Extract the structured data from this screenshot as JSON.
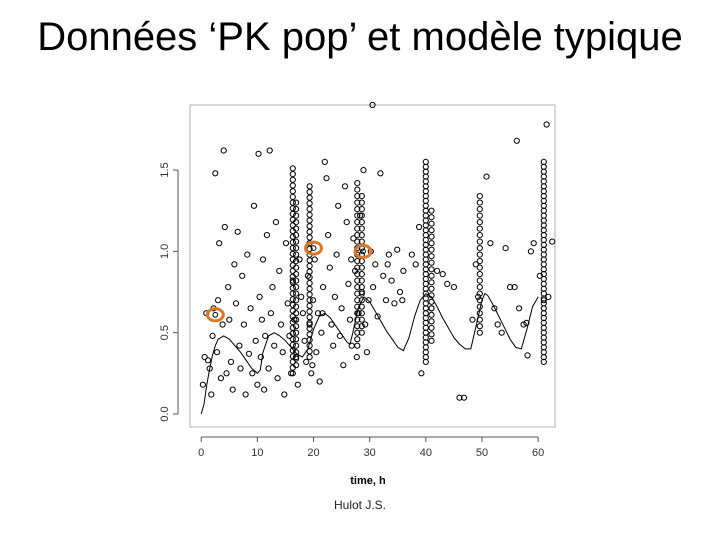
{
  "slide": {
    "title": "Données ‘PK pop’ et modèle typique",
    "footer": "Hulot J.S."
  },
  "colors": {
    "point_stroke": "#000000",
    "curve": "#000000",
    "highlight": "#d9782a",
    "background": "#ffffff"
  },
  "chart_data": {
    "type": "scatter",
    "title": "",
    "xlabel": "time, h",
    "ylabel": "",
    "xlim": [
      -2,
      63
    ],
    "ylim": [
      -0.08,
      1.9
    ],
    "grid": false,
    "legend": "none",
    "x_ticks": [
      {
        "value": 0,
        "label": "0"
      },
      {
        "value": 10,
        "label": "10"
      },
      {
        "value": 20,
        "label": "20"
      },
      {
        "value": 30,
        "label": "30"
      },
      {
        "value": 40,
        "label": "40"
      },
      {
        "value": 50,
        "label": "50"
      },
      {
        "value": 60,
        "label": "60"
      }
    ],
    "y_ticks": [
      {
        "value": 0.0,
        "label": "0.0"
      },
      {
        "value": 0.5,
        "label": "0.5"
      },
      {
        "value": 1.0,
        "label": "1.0"
      },
      {
        "value": 1.5,
        "label": "1.5"
      }
    ],
    "series": [
      {
        "type": "scatter",
        "points": [
          [
            0.3,
            0.18
          ],
          [
            0.6,
            0.35
          ],
          [
            0.9,
            0.62
          ],
          [
            1.2,
            0.33
          ],
          [
            1.5,
            0.28
          ],
          [
            1.8,
            0.12
          ],
          [
            2.0,
            0.48
          ],
          [
            2.2,
            0.65
          ],
          [
            2.5,
            1.48
          ],
          [
            2.8,
            0.38
          ],
          [
            3.0,
            0.7
          ],
          [
            3.2,
            1.05
          ],
          [
            3.5,
            0.22
          ],
          [
            3.8,
            0.55
          ],
          [
            4.0,
            1.62
          ],
          [
            4.2,
            1.15
          ],
          [
            4.5,
            0.25
          ],
          [
            4.8,
            0.78
          ],
          [
            5.0,
            0.58
          ],
          [
            5.3,
            0.32
          ],
          [
            5.6,
            0.15
          ],
          [
            5.9,
            0.92
          ],
          [
            6.2,
            0.68
          ],
          [
            6.5,
            1.12
          ],
          [
            6.8,
            0.42
          ],
          [
            7.0,
            0.28
          ],
          [
            7.3,
            0.85
          ],
          [
            7.6,
            0.55
          ],
          [
            7.9,
            0.12
          ],
          [
            8.2,
            0.98
          ],
          [
            8.5,
            0.37
          ],
          [
            8.8,
            0.65
          ],
          [
            9.1,
            0.25
          ],
          [
            9.4,
            1.28
          ],
          [
            9.7,
            0.45
          ],
          [
            10.0,
            0.18
          ],
          [
            10.2,
            1.6
          ],
          [
            10.4,
            0.72
          ],
          [
            10.6,
            0.35
          ],
          [
            10.8,
            0.58
          ],
          [
            11.0,
            0.95
          ],
          [
            11.2,
            0.15
          ],
          [
            11.4,
            0.48
          ],
          [
            11.7,
            1.1
          ],
          [
            12.0,
            0.28
          ],
          [
            12.2,
            1.62
          ],
          [
            12.4,
            0.62
          ],
          [
            12.7,
            0.78
          ],
          [
            13.0,
            0.42
          ],
          [
            13.3,
            1.18
          ],
          [
            13.6,
            0.22
          ],
          [
            13.9,
            0.88
          ],
          [
            14.2,
            0.55
          ],
          [
            14.5,
            0.38
          ],
          [
            14.8,
            0.12
          ],
          [
            15.1,
            1.05
          ],
          [
            15.4,
            0.68
          ],
          [
            15.7,
            0.48
          ],
          [
            16.0,
            0.25
          ],
          [
            16.3,
            0.82
          ],
          [
            16.6,
            0.58
          ],
          [
            16.9,
            0.35
          ],
          [
            17.2,
            0.18
          ],
          [
            17.5,
            0.95
          ],
          [
            17.8,
            0.72
          ],
          [
            18.1,
            0.62
          ],
          [
            18.4,
            0.45
          ],
          [
            18.7,
            0.32
          ],
          [
            19.0,
            0.85
          ],
          [
            19.3,
            0.55
          ],
          [
            19.6,
            0.25
          ],
          [
            19.9,
            0.7
          ],
          [
            20.2,
            0.95
          ],
          [
            20.5,
            0.38
          ],
          [
            20.8,
            0.62
          ],
          [
            21.1,
            0.2
          ],
          [
            21.4,
            0.5
          ],
          [
            21.7,
            0.78
          ],
          [
            22.0,
            1.55
          ],
          [
            22.3,
            1.45
          ],
          [
            22.6,
            1.1
          ],
          [
            22.9,
            0.9
          ],
          [
            23.2,
            0.55
          ],
          [
            23.5,
            0.42
          ],
          [
            23.8,
            0.72
          ],
          [
            24.1,
            0.98
          ],
          [
            24.4,
            1.28
          ],
          [
            24.7,
            0.48
          ],
          [
            25.0,
            0.65
          ],
          [
            25.3,
            0.3
          ],
          [
            25.6,
            1.4
          ],
          [
            25.9,
            1.18
          ],
          [
            26.2,
            0.8
          ],
          [
            26.5,
            0.58
          ],
          [
            26.8,
            0.42
          ],
          [
            27.1,
            1.08
          ],
          [
            27.4,
            0.88
          ],
          [
            27.7,
            0.35
          ],
          [
            28.0,
            0.62
          ],
          [
            28.3,
            1.22
          ],
          [
            28.6,
            0.75
          ],
          [
            28.9,
            1.5
          ],
          [
            29.2,
            0.55
          ],
          [
            29.5,
            0.38
          ],
          [
            29.8,
            0.7
          ],
          [
            30.2,
            1.0
          ],
          [
            30.6,
            0.78
          ],
          [
            31.0,
            0.92
          ],
          [
            31.4,
            0.6
          ],
          [
            31.9,
            1.48
          ],
          [
            32.4,
            0.85
          ],
          [
            32.9,
            0.7
          ],
          [
            33.4,
            0.98
          ],
          [
            33.9,
            0.82
          ],
          [
            34.4,
            0.68
          ],
          [
            34.9,
            1.01
          ],
          [
            35.4,
            0.75
          ],
          [
            36.0,
            0.88
          ],
          [
            37.5,
            0.98
          ],
          [
            38.2,
            0.92
          ],
          [
            38.8,
            1.15
          ],
          [
            39.2,
            0.25
          ],
          [
            41.0,
            0.65
          ],
          [
            42.0,
            0.88
          ],
          [
            43.0,
            0.86
          ],
          [
            43.8,
            0.8
          ],
          [
            45.0,
            0.78
          ],
          [
            46.0,
            0.1
          ],
          [
            46.8,
            0.1
          ],
          [
            48.3,
            0.58
          ],
          [
            48.9,
            0.92
          ],
          [
            49.3,
            0.72
          ],
          [
            50.8,
            1.46
          ],
          [
            51.5,
            1.05
          ],
          [
            52.2,
            0.65
          ],
          [
            52.8,
            0.55
          ],
          [
            53.5,
            0.5
          ],
          [
            54.2,
            1.02
          ],
          [
            55.0,
            0.78
          ],
          [
            55.8,
            0.78
          ],
          [
            56.6,
            0.65
          ],
          [
            57.4,
            0.55
          ],
          [
            58.1,
            0.36
          ],
          [
            58.7,
            1.0
          ],
          [
            59.2,
            1.05
          ],
          [
            60.3,
            0.85
          ],
          [
            61.0,
            0.7
          ],
          [
            61.8,
            0.72
          ],
          [
            62.5,
            1.06
          ],
          [
            61.5,
            1.78
          ],
          [
            30.5,
            1.9
          ],
          [
            19.8,
            0.3
          ],
          [
            21.6,
            0.62
          ],
          [
            26.7,
            0.95
          ],
          [
            33.2,
            0.92
          ],
          [
            35.8,
            0.7
          ],
          [
            57.9,
            0.56
          ],
          [
            56.2,
            1.68
          ]
        ],
        "columns": [
          {
            "x": 16.3,
            "from": 0.25,
            "to": 1.52,
            "step": 0.035
          },
          {
            "x": 16.9,
            "from": 0.3,
            "to": 1.32,
            "step": 0.04
          },
          {
            "x": 19.3,
            "from": 0.35,
            "to": 1.42,
            "step": 0.035
          },
          {
            "x": 27.8,
            "from": 0.42,
            "to": 1.42,
            "step": 0.04
          },
          {
            "x": 28.6,
            "from": 0.5,
            "to": 1.36,
            "step": 0.04
          },
          {
            "x": 40.0,
            "from": 0.32,
            "to": 1.55,
            "step": 0.03
          },
          {
            "x": 41.0,
            "from": 0.45,
            "to": 1.25,
            "step": 0.04
          },
          {
            "x": 49.6,
            "from": 0.5,
            "to": 1.36,
            "step": 0.04
          },
          {
            "x": 61.0,
            "from": 0.32,
            "to": 1.55,
            "step": 0.03
          }
        ]
      },
      {
        "type": "line",
        "name": "",
        "points": [
          [
            0,
            0.0
          ],
          [
            0.5,
            0.06
          ],
          [
            1,
            0.18
          ],
          [
            1.5,
            0.28
          ],
          [
            2,
            0.36
          ],
          [
            2.5,
            0.42
          ],
          [
            3,
            0.46
          ],
          [
            4,
            0.48
          ],
          [
            5,
            0.46
          ],
          [
            6,
            0.42
          ],
          [
            7,
            0.38
          ],
          [
            8,
            0.33
          ],
          [
            9,
            0.28
          ],
          [
            10,
            0.25
          ],
          [
            10.5,
            0.27
          ],
          [
            11,
            0.38
          ],
          [
            12,
            0.48
          ],
          [
            13,
            0.5
          ],
          [
            14,
            0.48
          ],
          [
            15,
            0.45
          ],
          [
            16,
            0.41
          ],
          [
            17,
            0.37
          ],
          [
            18,
            0.35
          ],
          [
            19,
            0.4
          ],
          [
            20,
            0.52
          ],
          [
            21,
            0.6
          ],
          [
            22,
            0.62
          ],
          [
            23,
            0.59
          ],
          [
            24,
            0.54
          ],
          [
            25,
            0.49
          ],
          [
            26,
            0.44
          ],
          [
            26.5,
            0.43
          ],
          [
            27,
            0.5
          ],
          [
            28,
            0.66
          ],
          [
            29,
            0.72
          ],
          [
            30,
            0.69
          ],
          [
            31,
            0.63
          ],
          [
            32,
            0.57
          ],
          [
            33,
            0.51
          ],
          [
            34,
            0.46
          ],
          [
            35,
            0.41
          ],
          [
            36,
            0.39
          ],
          [
            37,
            0.47
          ],
          [
            38,
            0.6
          ],
          [
            39,
            0.7
          ],
          [
            40,
            0.74
          ],
          [
            41,
            0.72
          ],
          [
            42,
            0.66
          ],
          [
            43,
            0.59
          ],
          [
            44,
            0.53
          ],
          [
            45,
            0.47
          ],
          [
            46,
            0.43
          ],
          [
            47,
            0.4
          ],
          [
            48,
            0.4
          ],
          [
            49,
            0.55
          ],
          [
            50,
            0.7
          ],
          [
            50.5,
            0.74
          ],
          [
            51,
            0.73
          ],
          [
            52,
            0.67
          ],
          [
            53,
            0.6
          ],
          [
            54,
            0.53
          ],
          [
            55,
            0.46
          ],
          [
            56,
            0.41
          ],
          [
            57,
            0.4
          ],
          [
            58,
            0.52
          ],
          [
            59,
            0.66
          ],
          [
            60,
            0.72
          ]
        ]
      }
    ],
    "highlighted_points": [
      [
        2.5,
        0.61
      ],
      [
        20.0,
        1.02
      ],
      [
        28.8,
        1.0
      ]
    ]
  }
}
